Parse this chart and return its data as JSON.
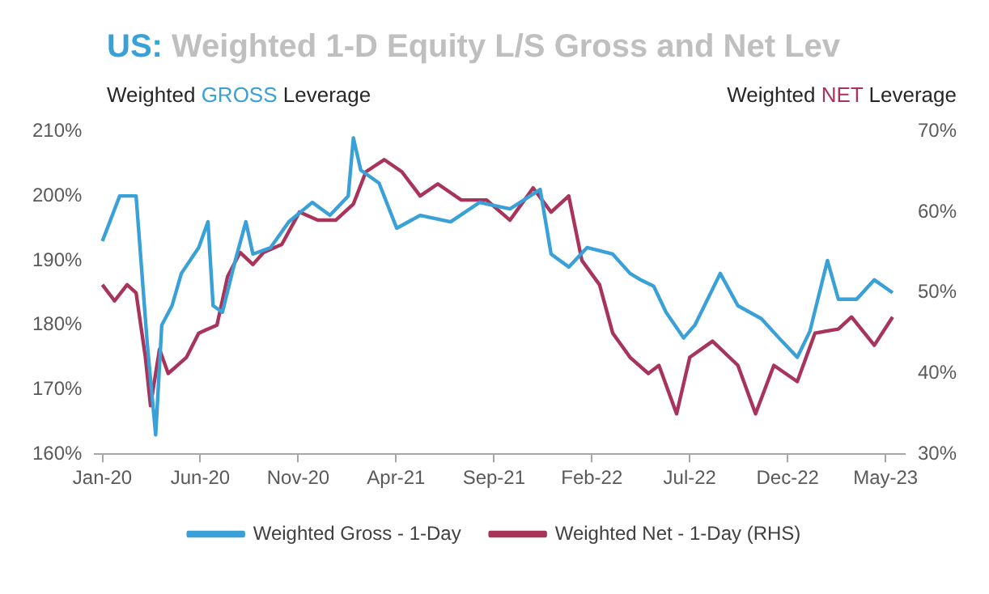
{
  "chart_data": {
    "type": "line",
    "title": "US: Weighted 1-D Equity L/S Gross and Net Lev",
    "ylabel": "Weighted GROSS Leverage",
    "y2label": "Weighted NET Leverage",
    "xlim": [
      "2019-12-20",
      "2023-05-31"
    ],
    "xticks": [
      {
        "value": "2020-01",
        "label": "Jan-20"
      },
      {
        "value": "2020-06",
        "label": "Jun-20"
      },
      {
        "value": "2020-11",
        "label": "Nov-20"
      },
      {
        "value": "2021-04",
        "label": "Apr-21"
      },
      {
        "value": "2021-09",
        "label": "Sep-21"
      },
      {
        "value": "2022-02",
        "label": "Feb-22"
      },
      {
        "value": "2022-07",
        "label": "Jul-22"
      },
      {
        "value": "2022-12",
        "label": "Dec-22"
      },
      {
        "value": "2023-05",
        "label": "May-23"
      }
    ],
    "ylim": [
      160,
      210
    ],
    "yticks": [
      {
        "value": 160,
        "label": "160%"
      },
      {
        "value": 170,
        "label": "170%"
      },
      {
        "value": 180,
        "label": "180%"
      },
      {
        "value": 190,
        "label": "190%"
      },
      {
        "value": 200,
        "label": "200%"
      },
      {
        "value": 210,
        "label": "210%"
      }
    ],
    "y2lim": [
      30,
      70
    ],
    "y2ticks": [
      {
        "value": 30,
        "label": "30%"
      },
      {
        "value": 40,
        "label": "40%"
      },
      {
        "value": 50,
        "label": "50%"
      },
      {
        "value": 60,
        "label": "60%"
      },
      {
        "value": 70,
        "label": "70%"
      }
    ],
    "grid": false,
    "legend": "bottom",
    "marker": "none",
    "line_style": "solid",
    "series": [
      {
        "name": "Weighted Gross - 1-Day",
        "color": "#3aa0d8",
        "x": [
          "2020-01-01",
          "2020-01-28",
          "2020-02-23",
          "2020-03-10",
          "2020-03-23",
          "2020-04-02",
          "2020-04-18",
          "2020-05-02",
          "2020-05-29",
          "2020-06-13",
          "2020-06-21",
          "2020-07-05",
          "2020-07-25",
          "2020-08-11",
          "2020-08-22",
          "2020-09-19",
          "2020-10-17",
          "2020-11-23",
          "2020-12-20",
          "2021-01-18",
          "2021-01-26",
          "2021-02-07",
          "2021-03-05",
          "2021-04-02",
          "2021-05-08",
          "2021-06-25",
          "2021-08-09",
          "2021-09-26",
          "2021-11-12",
          "2021-11-29",
          "2021-12-26",
          "2022-01-24",
          "2022-03-03",
          "2022-03-30",
          "2022-04-16",
          "2022-05-06",
          "2022-05-25",
          "2022-06-22",
          "2022-07-09",
          "2022-08-18",
          "2022-09-15",
          "2022-10-21",
          "2022-11-18",
          "2022-12-16",
          "2023-01-05",
          "2023-02-02",
          "2023-02-19",
          "2023-03-17",
          "2023-04-14",
          "2023-05-12"
        ],
        "values": [
          193,
          200,
          200,
          177,
          163,
          180,
          183,
          188,
          192,
          196,
          183,
          182,
          190,
          196,
          191,
          192,
          196,
          199,
          197,
          200,
          209,
          204,
          202,
          195,
          197,
          196,
          199,
          198,
          201,
          191,
          189,
          192,
          191,
          188,
          187,
          186,
          182,
          178,
          180,
          188,
          183,
          181,
          178,
          175,
          179,
          190,
          184,
          184,
          187,
          185
        ]
      },
      {
        "name": "Weighted Net - 1-Day (RHS)",
        "color": "#a8345a",
        "axis": "y2",
        "x": [
          "2020-01-01",
          "2020-01-20",
          "2020-02-09",
          "2020-02-23",
          "2020-03-07",
          "2020-03-15",
          "2020-03-29",
          "2020-04-12",
          "2020-05-10",
          "2020-05-29",
          "2020-06-27",
          "2020-07-13",
          "2020-08-02",
          "2020-08-22",
          "2020-09-08",
          "2020-10-06",
          "2020-11-03",
          "2020-12-01",
          "2020-12-29",
          "2021-01-26",
          "2021-02-15",
          "2021-03-13",
          "2021-04-10",
          "2021-05-08",
          "2021-06-05",
          "2021-07-11",
          "2021-08-20",
          "2021-09-26",
          "2021-11-01",
          "2021-11-29",
          "2021-12-26",
          "2022-01-16",
          "2022-02-13",
          "2022-03-03",
          "2022-03-30",
          "2022-04-28",
          "2022-05-14",
          "2022-06-11",
          "2022-07-01",
          "2022-08-06",
          "2022-09-15",
          "2022-10-12",
          "2022-11-10",
          "2022-12-16",
          "2023-01-13",
          "2023-02-19",
          "2023-03-09",
          "2023-04-14",
          "2023-05-12"
        ],
        "values": [
          51,
          49,
          51,
          50,
          42,
          36,
          43,
          40,
          42,
          45,
          46,
          52,
          55,
          53.5,
          55,
          56,
          60,
          59,
          59,
          61,
          65,
          66.5,
          65,
          62,
          63.5,
          61.5,
          61.5,
          59,
          63,
          60,
          62,
          54,
          51,
          45,
          42,
          40,
          41,
          35,
          42,
          44,
          41,
          35,
          41,
          39,
          45,
          45.5,
          47,
          43.5,
          47
        ]
      }
    ]
  }
}
